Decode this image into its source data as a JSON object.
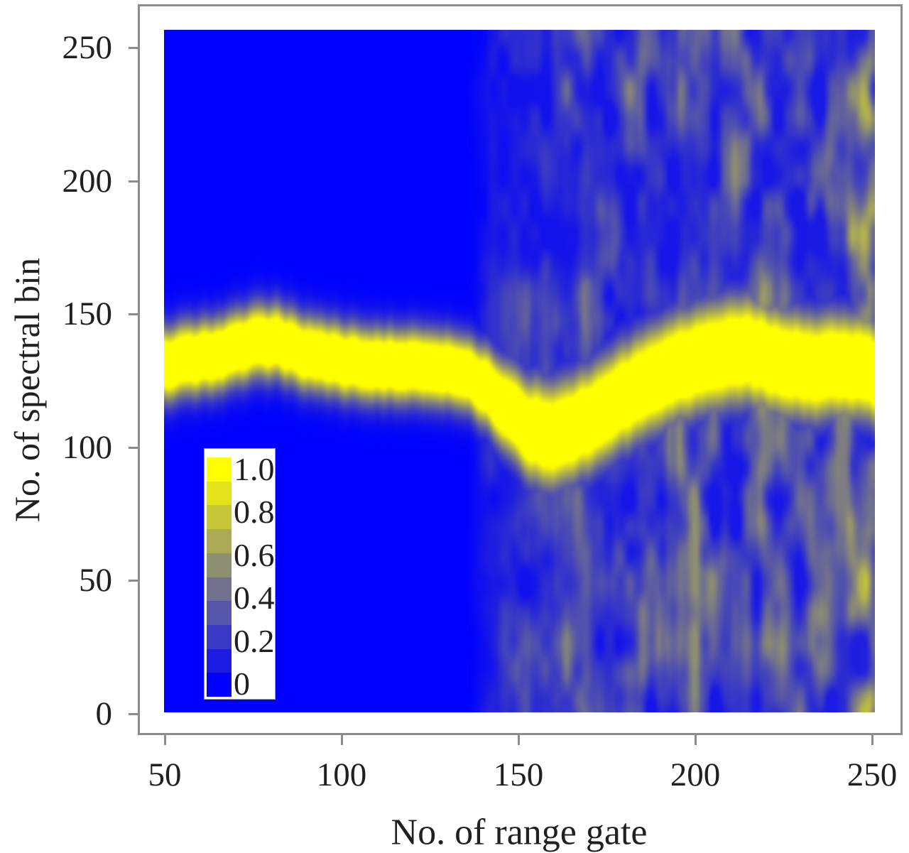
{
  "figure": {
    "xlabel": "No. of range gate",
    "ylabel": "No. of spectral bin"
  },
  "chart_data": {
    "type": "heatmap",
    "title": "",
    "xlabel": "No. of range gate",
    "ylabel": "No. of spectral bin",
    "x_ticks": [
      "50",
      "100",
      "150",
      "200",
      "250"
    ],
    "x_tick_values": [
      50,
      100,
      150,
      200,
      250
    ],
    "y_ticks": [
      "250",
      "200",
      "150",
      "100",
      "50",
      "0"
    ],
    "y_tick_values": [
      250,
      200,
      150,
      100,
      50,
      0
    ],
    "x_range": [
      50,
      251
    ],
    "y_range": [
      0,
      257
    ],
    "grid": false,
    "colormap": {
      "kind": "linear blue-gray-yellow",
      "low_color": "#0000ff",
      "mid_color": "#808080",
      "high_color": "#ffff00"
    },
    "colorbar": {
      "labels": [
        "1.0",
        "0.8",
        "0.6",
        "0.4",
        "0.2",
        "0"
      ],
      "values": [
        1.0,
        0.8,
        0.6,
        0.4,
        0.2,
        0
      ],
      "steps": 10,
      "position": "inset lower-left"
    },
    "band_amp": 1.55,
    "band_track": [
      [
        50,
        131
      ],
      [
        58,
        133
      ],
      [
        66,
        135
      ],
      [
        74,
        139
      ],
      [
        80,
        140
      ],
      [
        88,
        136
      ],
      [
        96,
        133
      ],
      [
        104,
        132
      ],
      [
        112,
        131
      ],
      [
        120,
        130
      ],
      [
        128,
        130
      ],
      [
        136,
        127
      ],
      [
        142,
        121
      ],
      [
        148,
        113
      ],
      [
        154,
        106
      ],
      [
        160,
        104
      ],
      [
        166,
        107
      ],
      [
        172,
        112
      ],
      [
        178,
        117
      ],
      [
        186,
        124
      ],
      [
        194,
        129
      ],
      [
        202,
        133
      ],
      [
        210,
        136
      ],
      [
        216,
        136
      ],
      [
        222,
        133
      ],
      [
        228,
        131
      ],
      [
        234,
        130
      ],
      [
        240,
        131
      ],
      [
        246,
        130
      ],
      [
        251,
        129
      ]
    ],
    "band_sigma": [
      [
        50,
        8.8
      ],
      [
        136,
        8.8
      ],
      [
        146,
        10.5
      ],
      [
        156,
        12.5
      ],
      [
        175,
        12.5
      ],
      [
        210,
        12.8
      ],
      [
        251,
        12.2
      ]
    ],
    "noise_amp": [
      [
        50,
        0
      ],
      [
        135,
        0
      ],
      [
        141,
        0.16
      ],
      [
        148,
        0.38
      ],
      [
        158,
        0.46
      ],
      [
        170,
        0.5
      ],
      [
        190,
        0.53
      ],
      [
        205,
        0.55
      ],
      [
        220,
        0.58
      ],
      [
        232,
        0.62
      ],
      [
        242,
        0.68
      ],
      [
        248,
        0.78
      ],
      [
        251,
        0.9
      ]
    ],
    "summary": "Normalized Doppler spectra: a bright ridge (value ~1.0) near spectral bin 130 runs across all range gates, dipping to ~bin 104 near gate 158 and recovering by gate 200; speckle noise (values 0.2-0.7) appears beyond range gate ~140 and intensifies toward gate 250."
  }
}
